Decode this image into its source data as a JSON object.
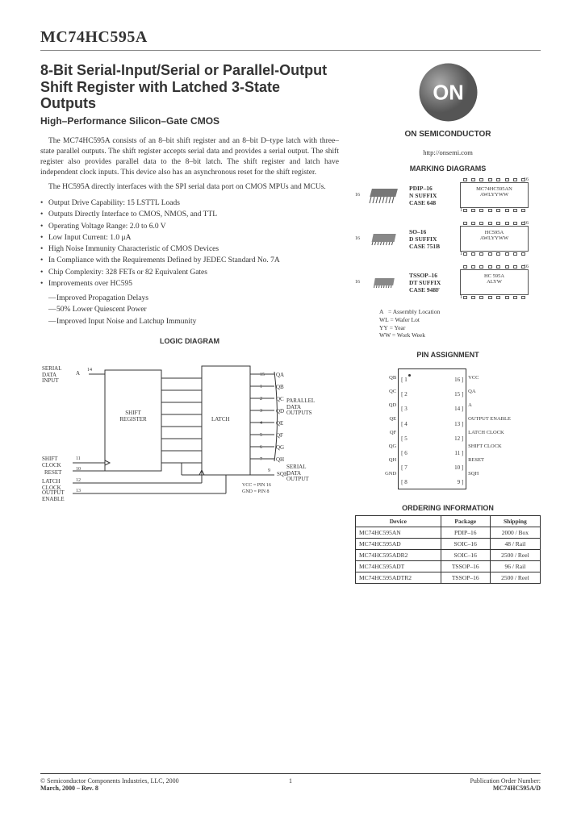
{
  "partNumber": "MC74HC595A",
  "title": "8-Bit Serial-Input/Serial or Parallel-Output Shift Register with Latched 3-State Outputs",
  "subtitle": "High–Performance Silicon–Gate CMOS",
  "para1": "The MC74HC595A consists of an 8–bit shift register and an 8–bit D–type latch with three–state parallel outputs. The shift register accepts serial data and provides a serial output. The shift register also provides parallel data to the 8–bit latch. The shift register and latch have independent clock inputs. This device also has an asynchronous reset for the shift register.",
  "para2": "The HC595A directly interfaces with the SPI serial data port on CMOS MPUs and MCUs.",
  "features": [
    "Output Drive Capability: 15 LSTTL Loads",
    "Outputs Directly Interface to CMOS, NMOS, and TTL",
    "Operating Voltage Range: 2.0 to 6.0 V",
    "Low Input Current: 1.0 μA",
    "High Noise Immunity Characteristic of CMOS Devices",
    "In Compliance with the Requirements Defined by JEDEC Standard No. 7A",
    "Chip Complexity: 328 FETs or 82 Equivalent Gates",
    "Improvements over HC595"
  ],
  "improvements": [
    "Improved Propagation Delays",
    "50% Lower Quiescent Power",
    "Improved Input Noise and Latchup Immunity"
  ],
  "logicDiagramTitle": "LOGIC DIAGRAM",
  "logic": {
    "serialDataInput": "SERIAL DATA INPUT",
    "shiftRegister": "SHIFT REGISTER",
    "latch": "LATCH",
    "parallelDataOutputs": "PARALLEL DATA OUTPUTS",
    "shiftClock": "SHIFT CLOCK",
    "reset": "RESET",
    "latchClock": "LATCH CLOCK",
    "outputEnable": "OUTPUT ENABLE",
    "serialDataOutput": "SERIAL DATA OUTPUT",
    "vccNote": "VCC = PIN 16",
    "gndNote": "GND = PIN 8",
    "pinA": "A",
    "pin14": "14",
    "outputs": [
      "QA",
      "QB",
      "QC",
      "QD",
      "QE",
      "QF",
      "QG",
      "QH"
    ],
    "outPins": [
      "15",
      "1",
      "2",
      "3",
      "4",
      "5",
      "6",
      "7"
    ],
    "pin11": "11",
    "pin10": "10",
    "pin12": "12",
    "pin13": "13",
    "pin9": "9",
    "sqh": "SQH"
  },
  "brand": {
    "logoText": "ON",
    "company": "ON SEMICONDUCTOR",
    "url": "http://onsemi.com"
  },
  "markingTitle": "MARKING DIAGRAMS",
  "packages": [
    {
      "name": "PDIP–16",
      "suffix": "N SUFFIX",
      "case": "CASE 648",
      "markLine1": "MC74HC595AN",
      "markLine2": "AWLYYWW",
      "pinCount": "16"
    },
    {
      "name": "SO–16",
      "suffix": "D SUFFIX",
      "case": "CASE 751B",
      "markLine1": "HC595A",
      "markLine2": "AWLYYWW",
      "pinCount": "16"
    },
    {
      "name": "TSSOP–16",
      "suffix": "DT SUFFIX",
      "case": "CASE 948F",
      "markLine1": "HC 595A",
      "markLine2": "ALYW",
      "pinCount": "16"
    }
  ],
  "legend": {
    "A": "= Assembly Location",
    "WL": "= Wafer Lot",
    "YY": "= Year",
    "WW": "= Work Week"
  },
  "pinTitle": "PIN ASSIGNMENT",
  "pins": {
    "left": [
      {
        "n": "1",
        "l": "QB"
      },
      {
        "n": "2",
        "l": "QC"
      },
      {
        "n": "3",
        "l": "QD"
      },
      {
        "n": "4",
        "l": "QE"
      },
      {
        "n": "5",
        "l": "QF"
      },
      {
        "n": "6",
        "l": "QG"
      },
      {
        "n": "7",
        "l": "QH"
      },
      {
        "n": "8",
        "l": "GND"
      }
    ],
    "right": [
      {
        "n": "16",
        "l": "VCC"
      },
      {
        "n": "15",
        "l": "QA"
      },
      {
        "n": "14",
        "l": "A"
      },
      {
        "n": "13",
        "l": "OUTPUT ENABLE"
      },
      {
        "n": "12",
        "l": "LATCH CLOCK"
      },
      {
        "n": "11",
        "l": "SHIFT CLOCK"
      },
      {
        "n": "10",
        "l": "RESET"
      },
      {
        "n": "9",
        "l": "SQH"
      }
    ]
  },
  "orderTitle": "ORDERING INFORMATION",
  "orderHeaders": [
    "Device",
    "Package",
    "Shipping"
  ],
  "orderRows": [
    [
      "MC74HC595AN",
      "PDIP–16",
      "2000 / Box"
    ],
    [
      "MC74HC595AD",
      "SOIC–16",
      "48 / Rail"
    ],
    [
      "MC74HC595ADR2",
      "SOIC–16",
      "2500 / Reel"
    ],
    [
      "MC74HC595ADT",
      "TSSOP–16",
      "96 / Rail"
    ],
    [
      "MC74HC595ADTR2",
      "TSSOP–16",
      "2500 / Reel"
    ]
  ],
  "footer": {
    "copyright": "© Semiconductor Components Industries, LLC, 2000",
    "date": "March, 2000 – Rev. 8",
    "page": "1",
    "pubLabel": "Publication Order Number:",
    "pubNum": "MC74HC595A/D"
  }
}
